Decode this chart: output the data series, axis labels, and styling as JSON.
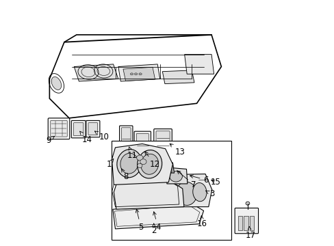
{
  "bg_color": "#ffffff",
  "line_color": "#000000",
  "line_width": 0.8,
  "font_size": 8.5,
  "labels_data": [
    [
      1,
      0.262,
      0.33,
      0.282,
      0.355
    ],
    [
      2,
      0.445,
      0.062,
      0.445,
      0.092
    ],
    [
      3,
      0.682,
      0.21,
      0.648,
      0.228
    ],
    [
      4,
      0.462,
      0.075,
      0.442,
      0.148
    ],
    [
      5,
      0.392,
      0.075,
      0.372,
      0.158
    ],
    [
      6,
      0.658,
      0.268,
      0.582,
      0.288
    ],
    [
      7,
      0.608,
      0.248,
      0.532,
      0.312
    ],
    [
      8,
      0.332,
      0.282,
      0.308,
      0.322
    ],
    [
      9,
      0.015,
      0.428,
      0.048,
      0.452
    ],
    [
      10,
      0.242,
      0.442,
      0.202,
      0.468
    ],
    [
      11,
      0.358,
      0.368,
      0.34,
      0.412
    ],
    [
      12,
      0.448,
      0.332,
      0.402,
      0.392
    ],
    [
      13,
      0.552,
      0.382,
      0.502,
      0.422
    ],
    [
      14,
      0.172,
      0.432,
      0.142,
      0.468
    ],
    [
      15,
      0.698,
      0.258,
      0.67,
      0.272
    ],
    [
      16,
      0.642,
      0.088,
      0.638,
      0.132
    ],
    [
      17,
      0.838,
      0.042,
      0.832,
      0.088
    ]
  ]
}
